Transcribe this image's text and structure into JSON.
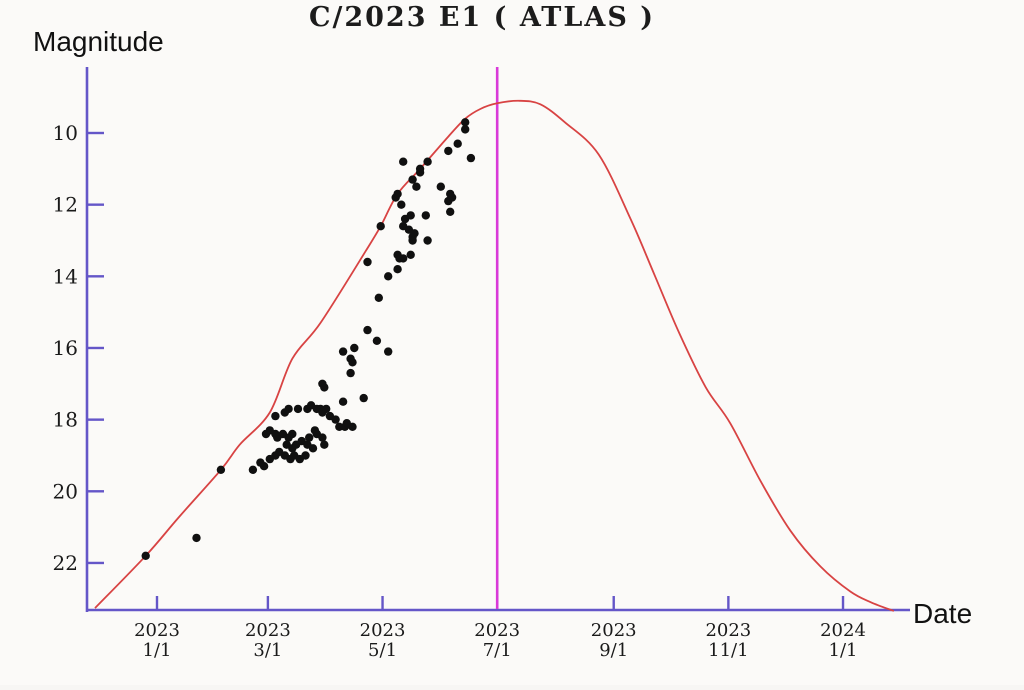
{
  "title": "C/2023 E1 ( ATLAS )",
  "axes": {
    "y_label": "Magnitude",
    "x_label": "Date"
  },
  "colors": {
    "axis": "#6456c8",
    "curve": "#d84343",
    "marker": "#101010",
    "perihelion_line": "#d939d9",
    "background": "#fbfaf8",
    "text": "#1a1a1a"
  },
  "chart_data": {
    "type": "scatter",
    "title": "C/2023 E1 ( ATLAS )",
    "xlabel": "Date",
    "ylabel": "Magnitude",
    "y_axis": {
      "ticks": [
        10,
        12,
        14,
        16,
        18,
        20,
        22
      ],
      "inverted": true,
      "range": [
        8.2,
        23.3
      ]
    },
    "x_axis": {
      "epoch": "2023-01-01",
      "range_days": [
        -37,
        401
      ],
      "ticks": [
        {
          "day": 0,
          "line1": "2023",
          "line2": "1/1"
        },
        {
          "day": 59,
          "line1": "2023",
          "line2": "3/1"
        },
        {
          "day": 120,
          "line1": "2023",
          "line2": "5/1"
        },
        {
          "day": 181,
          "line1": "2023",
          "line2": "7/1"
        },
        {
          "day": 243,
          "line1": "2023",
          "line2": "9/1"
        },
        {
          "day": 304,
          "line1": "2023",
          "line2": "11/1"
        },
        {
          "day": 365,
          "line1": "2024",
          "line2": "1/1"
        }
      ]
    },
    "perihelion_vline_day": 181,
    "predicted_curve": [
      [
        -33,
        23.26
      ],
      [
        -6,
        21.8
      ],
      [
        12,
        20.7
      ],
      [
        34,
        19.4
      ],
      [
        44,
        18.7
      ],
      [
        60,
        17.8
      ],
      [
        72,
        16.3
      ],
      [
        87,
        15.3
      ],
      [
        111,
        13.3
      ],
      [
        119,
        12.6
      ],
      [
        128,
        11.7
      ],
      [
        140,
        11.0
      ],
      [
        155,
        10.1
      ],
      [
        164,
        9.6
      ],
      [
        172,
        9.33
      ],
      [
        181,
        9.17
      ],
      [
        193,
        9.1
      ],
      [
        204,
        9.2
      ],
      [
        217,
        9.7
      ],
      [
        235,
        10.6
      ],
      [
        252,
        12.4
      ],
      [
        265,
        14.0
      ],
      [
        278,
        15.6
      ],
      [
        292,
        17.1
      ],
      [
        305,
        18.1
      ],
      [
        321,
        19.7
      ],
      [
        337,
        21.1
      ],
      [
        353,
        22.1
      ],
      [
        369,
        22.8
      ],
      [
        380,
        23.1
      ],
      [
        392,
        23.34
      ]
    ],
    "observations": [
      [
        -6,
        21.8
      ],
      [
        21,
        21.3
      ],
      [
        34,
        19.4
      ],
      [
        51,
        19.4
      ],
      [
        55,
        19.2
      ],
      [
        57,
        19.3
      ],
      [
        58,
        18.4
      ],
      [
        60,
        19.1
      ],
      [
        60,
        18.3
      ],
      [
        63,
        19.0
      ],
      [
        63,
        18.4
      ],
      [
        63,
        17.9
      ],
      [
        64,
        18.5
      ],
      [
        65,
        18.9
      ],
      [
        67,
        18.4
      ],
      [
        68,
        19.0
      ],
      [
        68,
        17.8
      ],
      [
        69,
        18.7
      ],
      [
        70,
        17.7
      ],
      [
        70,
        18.5
      ],
      [
        71,
        19.1
      ],
      [
        72,
        18.8
      ],
      [
        72,
        18.4
      ],
      [
        73,
        19.0
      ],
      [
        74,
        18.7
      ],
      [
        75,
        17.7
      ],
      [
        76,
        19.1
      ],
      [
        77,
        18.6
      ],
      [
        79,
        19.0
      ],
      [
        80,
        17.7
      ],
      [
        80,
        18.7
      ],
      [
        81,
        18.5
      ],
      [
        82,
        17.6
      ],
      [
        83,
        18.8
      ],
      [
        84,
        18.3
      ],
      [
        85,
        17.7
      ],
      [
        85,
        18.4
      ],
      [
        87,
        17.7
      ],
      [
        88,
        17.8
      ],
      [
        88,
        18.5
      ],
      [
        88,
        17.0
      ],
      [
        89,
        17.1
      ],
      [
        89,
        18.7
      ],
      [
        90,
        17.7
      ],
      [
        92,
        17.9
      ],
      [
        95,
        18.0
      ],
      [
        97,
        18.2
      ],
      [
        99,
        17.5
      ],
      [
        99,
        16.1
      ],
      [
        100,
        18.2
      ],
      [
        101,
        18.1
      ],
      [
        103,
        16.7
      ],
      [
        103,
        16.3
      ],
      [
        104,
        18.2
      ],
      [
        104,
        16.4
      ],
      [
        105,
        16.0
      ],
      [
        110,
        17.4
      ],
      [
        112,
        15.5
      ],
      [
        112,
        13.6
      ],
      [
        117,
        15.8
      ],
      [
        118,
        14.6
      ],
      [
        119,
        12.6
      ],
      [
        123,
        14.0
      ],
      [
        123,
        16.1
      ],
      [
        127,
        11.8
      ],
      [
        128,
        13.8
      ],
      [
        128,
        13.4
      ],
      [
        128,
        11.7
      ],
      [
        129,
        13.5
      ],
      [
        130,
        12.0
      ],
      [
        131,
        13.5
      ],
      [
        131,
        12.6
      ],
      [
        131,
        10.8
      ],
      [
        132,
        12.4
      ],
      [
        134,
        12.7
      ],
      [
        135,
        13.4
      ],
      [
        135,
        12.3
      ],
      [
        136,
        13.0
      ],
      [
        136,
        12.9
      ],
      [
        136,
        11.3
      ],
      [
        137,
        12.8
      ],
      [
        138,
        11.5
      ],
      [
        140,
        11.1
      ],
      [
        140,
        11.0
      ],
      [
        143,
        12.3
      ],
      [
        144,
        13.0
      ],
      [
        144,
        10.8
      ],
      [
        151,
        11.5
      ],
      [
        155,
        11.9
      ],
      [
        155,
        10.5
      ],
      [
        156,
        12.2
      ],
      [
        156,
        11.7
      ],
      [
        157,
        11.8
      ],
      [
        160,
        10.3
      ],
      [
        164,
        9.9
      ],
      [
        164,
        9.7
      ],
      [
        167,
        10.7
      ]
    ]
  }
}
